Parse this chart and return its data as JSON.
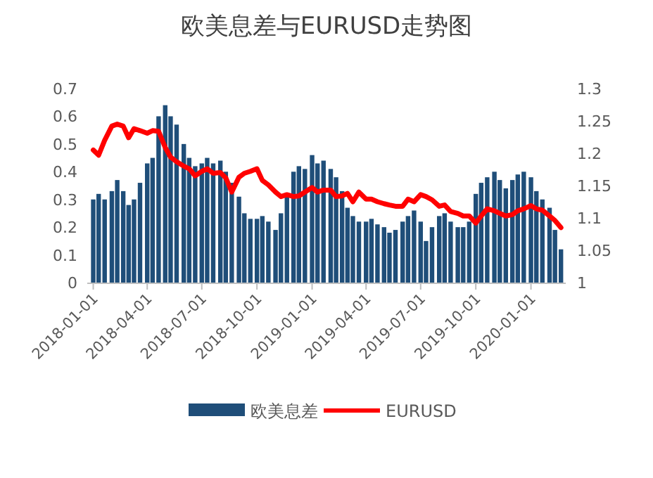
{
  "chart_data": {
    "type": "bar",
    "title": "欧美息差与EURUSD走势图",
    "x": [
      "2018-01-01",
      "2018-01-10",
      "2018-01-20",
      "2018-02-01",
      "2018-02-10",
      "2018-02-20",
      "2018-03-01",
      "2018-03-10",
      "2018-03-20",
      "2018-04-01",
      "2018-04-10",
      "2018-04-20",
      "2018-05-01",
      "2018-05-10",
      "2018-05-20",
      "2018-06-01",
      "2018-06-10",
      "2018-06-20",
      "2018-07-01",
      "2018-07-10",
      "2018-07-20",
      "2018-08-01",
      "2018-08-10",
      "2018-08-20",
      "2018-09-01",
      "2018-09-10",
      "2018-09-20",
      "2018-10-01",
      "2018-10-10",
      "2018-10-20",
      "2018-11-01",
      "2018-11-10",
      "2018-11-20",
      "2018-12-01",
      "2018-12-10",
      "2018-12-20",
      "2019-01-01",
      "2019-01-10",
      "2019-01-20",
      "2019-02-01",
      "2019-02-10",
      "2019-02-20",
      "2019-03-01",
      "2019-03-10",
      "2019-03-20",
      "2019-04-01",
      "2019-04-10",
      "2019-04-20",
      "2019-05-01",
      "2019-05-10",
      "2019-05-20",
      "2019-06-01",
      "2019-06-10",
      "2019-06-20",
      "2019-07-01",
      "2019-07-10",
      "2019-07-20",
      "2019-08-01",
      "2019-08-10",
      "2019-08-20",
      "2019-09-01",
      "2019-09-10",
      "2019-09-20",
      "2019-10-01",
      "2019-10-10",
      "2019-10-20",
      "2019-11-01",
      "2019-11-10",
      "2019-11-20",
      "2019-12-01",
      "2019-12-10",
      "2019-12-20",
      "2020-01-01",
      "2020-01-10",
      "2020-01-20",
      "2020-02-01",
      "2020-02-10",
      "2020-02-20"
    ],
    "series": [
      {
        "name": "欧美息差",
        "color": "#1f4e79",
        "values": [
          0.3,
          0.32,
          0.3,
          0.33,
          0.37,
          0.33,
          0.28,
          0.3,
          0.36,
          0.43,
          0.45,
          0.6,
          0.64,
          0.6,
          0.57,
          0.5,
          0.45,
          0.42,
          0.43,
          0.45,
          0.43,
          0.44,
          0.4,
          0.36,
          0.31,
          0.25,
          0.23,
          0.23,
          0.24,
          0.22,
          0.19,
          0.25,
          0.32,
          0.4,
          0.42,
          0.41,
          0.46,
          0.43,
          0.44,
          0.41,
          0.38,
          0.33,
          0.27,
          0.24,
          0.22,
          0.22,
          0.23,
          0.21,
          0.2,
          0.18,
          0.19,
          0.22,
          0.24,
          0.26,
          0.22,
          0.15,
          0.2,
          0.24,
          0.25,
          0.22,
          0.2,
          0.2,
          0.22,
          0.32,
          0.36,
          0.38,
          0.4,
          0.37,
          0.34,
          0.37,
          0.39,
          0.4,
          0.38,
          0.33,
          0.3,
          0.27,
          0.19,
          0.12
        ]
      },
      {
        "name": "EURUSD",
        "type": "line",
        "axis": "y2",
        "color": "#ff0000",
        "values": [
          1.205,
          1.197,
          1.22,
          1.242,
          1.245,
          1.242,
          1.224,
          1.238,
          1.235,
          1.231,
          1.235,
          1.234,
          1.209,
          1.194,
          1.187,
          1.18,
          1.176,
          1.165,
          1.172,
          1.176,
          1.169,
          1.17,
          1.162,
          1.14,
          1.163,
          1.169,
          1.172,
          1.176,
          1.158,
          1.151,
          1.14,
          1.133,
          1.136,
          1.133,
          1.134,
          1.14,
          1.147,
          1.14,
          1.143,
          1.143,
          1.133,
          1.134,
          1.138,
          1.125,
          1.14,
          1.129,
          1.129,
          1.125,
          1.122,
          1.12,
          1.118,
          1.118,
          1.129,
          1.125,
          1.136,
          1.133,
          1.128,
          1.118,
          1.12,
          1.11,
          1.107,
          1.103,
          1.103,
          1.092,
          1.103,
          1.114,
          1.111,
          1.107,
          1.103,
          1.105,
          1.111,
          1.114,
          1.119,
          1.114,
          1.112,
          1.103,
          1.096,
          1.085
        ]
      }
    ],
    "xlim": [
      "2017-12-22",
      "2020-02-28"
    ],
    "xticks": [
      {
        "value": "2018-01-01",
        "label": "2018-01-01"
      },
      {
        "value": "2018-04-01",
        "label": "2018-04-01"
      },
      {
        "value": "2018-07-01",
        "label": "2018-07-01"
      },
      {
        "value": "2018-10-01",
        "label": "2018-10-01"
      },
      {
        "value": "2019-01-01",
        "label": "2019-01-01"
      },
      {
        "value": "2019-04-01",
        "label": "2019-04-01"
      },
      {
        "value": "2019-07-01",
        "label": "2019-07-01"
      },
      {
        "value": "2019-10-01",
        "label": "2019-10-01"
      },
      {
        "value": "2020-01-01",
        "label": "2020-01-01"
      }
    ],
    "ylim": [
      0,
      0.7
    ],
    "yticks": [
      0,
      0.1,
      0.2,
      0.3,
      0.4,
      0.5,
      0.6,
      0.7
    ],
    "y2lim": [
      1,
      1.3
    ],
    "y2ticks": [
      1,
      1.05,
      1.1,
      1.15,
      1.2,
      1.25,
      1.3
    ],
    "grid": false,
    "legend": "bottom"
  }
}
